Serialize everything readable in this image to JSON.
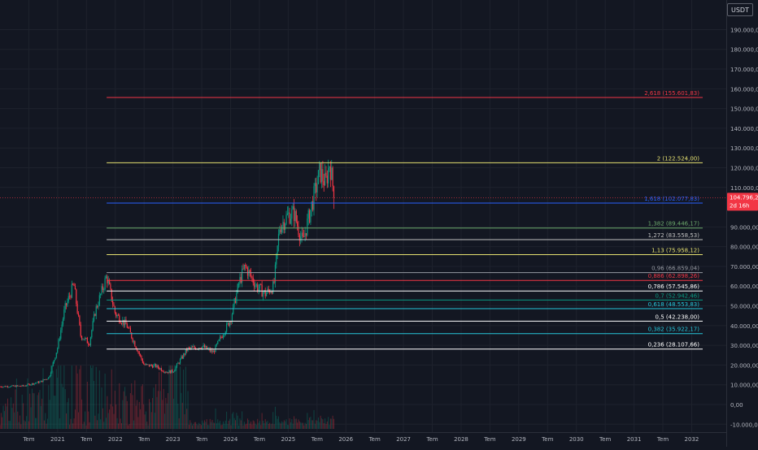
{
  "currency_button": "USDT",
  "colors": {
    "background": "#131722",
    "grid": "#1e222d",
    "axis_text": "#b2b5be",
    "up": "#089981",
    "down": "#f23645",
    "price_badge": "#f23645"
  },
  "price_badge": {
    "price_label": "104.796,25",
    "countdown_label": "2d 16h",
    "value": 104796.25
  },
  "chart_data": {
    "type": "candlestick",
    "ylim": [
      -14000,
      205000
    ],
    "xlim": [
      2020.0,
      2032.6
    ],
    "y_ticks": [
      {
        "value": 190000,
        "label": "190.000,00"
      },
      {
        "value": 180000,
        "label": "180.000,00"
      },
      {
        "value": 170000,
        "label": "170.000,00"
      },
      {
        "value": 160000,
        "label": "160.000,00"
      },
      {
        "value": 150000,
        "label": "150.000,00"
      },
      {
        "value": 140000,
        "label": "140.000,00"
      },
      {
        "value": 130000,
        "label": "130.000,00"
      },
      {
        "value": 120000,
        "label": "120.000,00"
      },
      {
        "value": 110000,
        "label": "110.000,00"
      },
      {
        "value": 90000,
        "label": "90.000,00"
      },
      {
        "value": 80000,
        "label": "80.000,00"
      },
      {
        "value": 70000,
        "label": "70.000,00"
      },
      {
        "value": 60000,
        "label": "60.000,00"
      },
      {
        "value": 50000,
        "label": "50.000,00"
      },
      {
        "value": 40000,
        "label": "40.000,00"
      },
      {
        "value": 30000,
        "label": "30.000,00"
      },
      {
        "value": 20000,
        "label": "20.000,00"
      },
      {
        "value": 10000,
        "label": "10.000,00"
      },
      {
        "value": 0,
        "label": "0,00"
      },
      {
        "value": -10000,
        "label": "-10.000,00"
      }
    ],
    "x_ticks": [
      {
        "t": 2020.5,
        "label": "Tem"
      },
      {
        "t": 2021.0,
        "label": "2021"
      },
      {
        "t": 2021.5,
        "label": "Tem"
      },
      {
        "t": 2022.0,
        "label": "2022"
      },
      {
        "t": 2022.5,
        "label": "Tem"
      },
      {
        "t": 2023.0,
        "label": "2023"
      },
      {
        "t": 2023.5,
        "label": "Tem"
      },
      {
        "t": 2024.0,
        "label": "2024"
      },
      {
        "t": 2024.5,
        "label": "Tem"
      },
      {
        "t": 2025.0,
        "label": "2025"
      },
      {
        "t": 2025.5,
        "label": "Tem"
      },
      {
        "t": 2026.0,
        "label": "2026"
      },
      {
        "t": 2026.5,
        "label": "Tem"
      },
      {
        "t": 2027.0,
        "label": "2027"
      },
      {
        "t": 2027.5,
        "label": "Tem"
      },
      {
        "t": 2028.0,
        "label": "2028"
      },
      {
        "t": 2028.5,
        "label": "Tem"
      },
      {
        "t": 2029.0,
        "label": "2029"
      },
      {
        "t": 2029.5,
        "label": "Tem"
      },
      {
        "t": 2030.0,
        "label": "2030"
      },
      {
        "t": 2030.5,
        "label": "Tem"
      },
      {
        "t": 2031.0,
        "label": "2031"
      },
      {
        "t": 2031.5,
        "label": "Tem"
      },
      {
        "t": 2032.0,
        "label": "2032"
      }
    ],
    "fib_start": 2021.85,
    "fib_levels": [
      {
        "level": "2,618",
        "price": 155601.83,
        "label": "2,618 (155.601,83)",
        "color": "#f23645"
      },
      {
        "level": "2",
        "price": 122524.0,
        "label": "2 (122.524,00)",
        "color": "#e5e070"
      },
      {
        "level": "1,618",
        "price": 102077.83,
        "label": "1,618 (102.077,83)",
        "color": "#2962ff"
      },
      {
        "level": "1,382",
        "price": 89446.17,
        "label": "1,382 (89.446,17)",
        "color": "#6ba86b"
      },
      {
        "level": "1,272",
        "price": 83558.53,
        "label": "1,272 (83.558,53)",
        "color": "#c0c0c0"
      },
      {
        "level": "1,13",
        "price": 75958.12,
        "label": "1,13 (75.958,12)",
        "color": "#e5e070"
      },
      {
        "level": "0,96",
        "price": 66859.04,
        "label": "0,96 (66.859,04)",
        "color": "#9598a1"
      },
      {
        "level": "0,886",
        "price": 62898.26,
        "label": "0,886 (62.898,26)",
        "color": "#f23645"
      },
      {
        "level": "0,786",
        "price": 57545.86,
        "label": "0,786 (57.545,86)",
        "color": "#ffffff"
      },
      {
        "level": "0,7",
        "price": 52942.46,
        "label": "0,7 (52.942,46)",
        "color": "#089981"
      },
      {
        "level": "0,618",
        "price": 48553.83,
        "label": "0,618 (48.553,83)",
        "color": "#26c6da"
      },
      {
        "level": "0,5",
        "price": 42238.0,
        "label": "0,5 (42.238,00)",
        "color": "#ffffff"
      },
      {
        "level": "0,382",
        "price": 35922.17,
        "label": "0,382 (35.922,17)",
        "color": "#26c6da"
      },
      {
        "level": "0,236",
        "price": 28107.66,
        "label": "0,236 (28.107,66)",
        "color": "#ffffff"
      }
    ],
    "price_anchors": [
      [
        2020.0,
        9100
      ],
      [
        2020.4,
        9400
      ],
      [
        2020.7,
        11500
      ],
      [
        2020.85,
        13800
      ],
      [
        2021.0,
        29000
      ],
      [
        2021.12,
        48000
      ],
      [
        2021.28,
        61000
      ],
      [
        2021.4,
        35000
      ],
      [
        2021.55,
        31000
      ],
      [
        2021.65,
        47000
      ],
      [
        2021.85,
        65000
      ],
      [
        2022.0,
        46000
      ],
      [
        2022.2,
        40000
      ],
      [
        2022.35,
        30000
      ],
      [
        2022.5,
        20000
      ],
      [
        2022.7,
        19500
      ],
      [
        2022.88,
        16500
      ],
      [
        2023.0,
        16800
      ],
      [
        2023.25,
        28000
      ],
      [
        2023.5,
        29500
      ],
      [
        2023.7,
        26500
      ],
      [
        2023.85,
        35000
      ],
      [
        2024.0,
        43000
      ],
      [
        2024.15,
        62000
      ],
      [
        2024.25,
        70000
      ],
      [
        2024.45,
        60000
      ],
      [
        2024.6,
        56000
      ],
      [
        2024.75,
        60000
      ],
      [
        2024.85,
        90000
      ],
      [
        2025.0,
        96000
      ],
      [
        2025.1,
        97000
      ],
      [
        2025.25,
        82000
      ],
      [
        2025.35,
        94000
      ],
      [
        2025.45,
        106000
      ],
      [
        2025.55,
        118000
      ],
      [
        2025.65,
        112000
      ],
      [
        2025.72,
        123000
      ],
      [
        2025.8,
        104796
      ]
    ]
  }
}
